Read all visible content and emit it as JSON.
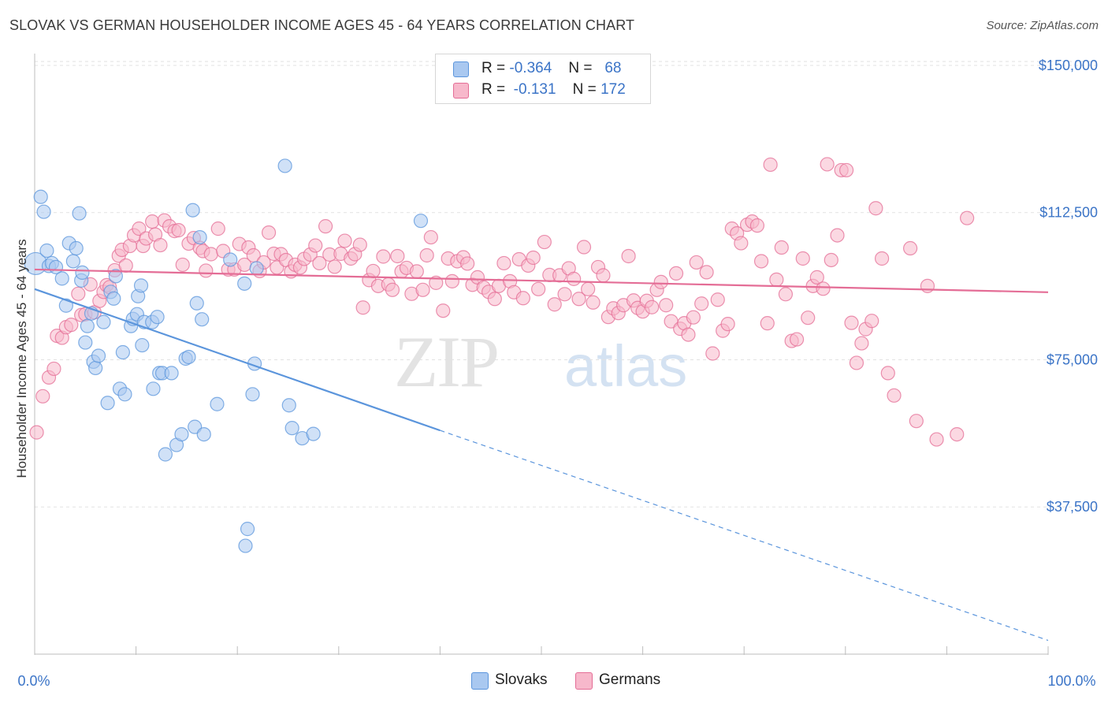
{
  "title": "SLOVAK VS GERMAN HOUSEHOLDER INCOME AGES 45 - 64 YEARS CORRELATION CHART",
  "source": "Source: ZipAtlas.com",
  "watermark": {
    "zip": "ZIP",
    "atlas": "atlas"
  },
  "legend": {
    "rows": [
      {
        "r_label": "R =",
        "r_value": "-0.364",
        "n_label": "N =",
        "n_value": "68",
        "color": "#a9c8f0"
      },
      {
        "r_label": "R =",
        "r_value": "-0.131",
        "n_label": "N =",
        "n_value": "172",
        "color": "#f7b8cb"
      }
    ]
  },
  "bottom_legend": [
    {
      "label": "Slovaks",
      "color": "#a9c8f0"
    },
    {
      "label": "Germans",
      "color": "#f7b8cb"
    }
  ],
  "chart_data": {
    "type": "scatter",
    "title": "SLOVAK VS GERMAN HOUSEHOLDER INCOME AGES 45 - 64 YEARS CORRELATION CHART",
    "xlabel": "",
    "ylabel": "Householder Income Ages 45 - 64 years",
    "x_tick_labels": [
      "0.0%",
      "100.0%"
    ],
    "y_tick_labels": [
      "$150,000",
      "$112,500",
      "$75,000",
      "$37,500"
    ],
    "y_ticks": [
      150000,
      112500,
      75000,
      37500
    ],
    "xlim": [
      0,
      100
    ],
    "ylim": [
      0,
      153000
    ],
    "grid": "horizontal dashed",
    "legend_position": "top-center",
    "series": [
      {
        "name": "Slovaks",
        "color": "#5b95dc",
        "fill": "#a9c8f0",
        "trend": {
          "x0": 0,
          "y0": 93000,
          "x1": 40,
          "y1": 57000,
          "dashed_to_x": 100,
          "dashed_to_y": 3500
        },
        "points": [
          [
            0.1,
            99500
          ],
          [
            0.6,
            116500
          ],
          [
            0.9,
            112700
          ],
          [
            1.2,
            102800
          ],
          [
            1.4,
            98900
          ],
          [
            1.7,
            99600
          ],
          [
            2.1,
            98600
          ],
          [
            2.7,
            95700
          ],
          [
            3.1,
            88800
          ],
          [
            3.4,
            104700
          ],
          [
            3.8,
            100100
          ],
          [
            4.1,
            103400
          ],
          [
            4.4,
            112300
          ],
          [
            4.6,
            95200
          ],
          [
            4.7,
            97200
          ],
          [
            5.0,
            79400
          ],
          [
            5.2,
            83600
          ],
          [
            5.6,
            86800
          ],
          [
            5.8,
            74500
          ],
          [
            6.0,
            72900
          ],
          [
            6.3,
            76000
          ],
          [
            6.8,
            84600
          ],
          [
            7.2,
            64000
          ],
          [
            7.5,
            92300
          ],
          [
            7.8,
            90600
          ],
          [
            8.0,
            96300
          ],
          [
            8.4,
            67600
          ],
          [
            8.7,
            76900
          ],
          [
            8.9,
            66200
          ],
          [
            9.5,
            83600
          ],
          [
            9.7,
            85400
          ],
          [
            10.1,
            86600
          ],
          [
            10.2,
            91200
          ],
          [
            10.5,
            93900
          ],
          [
            10.6,
            78700
          ],
          [
            10.8,
            84600
          ],
          [
            11.6,
            84600
          ],
          [
            11.7,
            67600
          ],
          [
            12.1,
            85900
          ],
          [
            12.3,
            71600
          ],
          [
            12.6,
            71600
          ],
          [
            12.9,
            50900
          ],
          [
            13.5,
            71600
          ],
          [
            14.0,
            53300
          ],
          [
            14.5,
            56000
          ],
          [
            14.9,
            75300
          ],
          [
            15.2,
            75700
          ],
          [
            15.6,
            113100
          ],
          [
            15.8,
            57900
          ],
          [
            16.0,
            89400
          ],
          [
            16.3,
            106200
          ],
          [
            16.5,
            85300
          ],
          [
            16.7,
            56000
          ],
          [
            18.0,
            63700
          ],
          [
            19.3,
            100500
          ],
          [
            20.7,
            94400
          ],
          [
            20.8,
            27600
          ],
          [
            21.0,
            31900
          ],
          [
            21.5,
            66200
          ],
          [
            21.7,
            74000
          ],
          [
            21.9,
            98300
          ],
          [
            24.7,
            124400
          ],
          [
            25.1,
            63400
          ],
          [
            25.4,
            57600
          ],
          [
            26.4,
            55000
          ],
          [
            27.5,
            56100
          ],
          [
            38.1,
            110400
          ]
        ]
      },
      {
        "name": "Germans",
        "color": "#e46d96",
        "fill": "#f7b8cb",
        "trend": {
          "x0": 0,
          "y0": 98000,
          "x1": 100,
          "y1": 92200
        },
        "points": [
          [
            0.2,
            56500
          ],
          [
            0.8,
            65700
          ],
          [
            1.4,
            70500
          ],
          [
            1.9,
            72700
          ],
          [
            2.2,
            81100
          ],
          [
            2.7,
            80600
          ],
          [
            3.1,
            83300
          ],
          [
            3.6,
            83900
          ],
          [
            4.3,
            91800
          ],
          [
            4.6,
            86400
          ],
          [
            5.0,
            86600
          ],
          [
            5.5,
            94200
          ],
          [
            5.9,
            87100
          ],
          [
            6.4,
            90000
          ],
          [
            6.8,
            92300
          ],
          [
            7.1,
            94000
          ],
          [
            7.4,
            93500
          ],
          [
            7.9,
            97800
          ],
          [
            8.3,
            101500
          ],
          [
            8.6,
            103000
          ],
          [
            9.0,
            99000
          ],
          [
            9.4,
            104000
          ],
          [
            9.8,
            106700
          ],
          [
            10.3,
            108400
          ],
          [
            10.7,
            104000
          ],
          [
            11.0,
            105900
          ],
          [
            11.6,
            110200
          ],
          [
            11.9,
            106900
          ],
          [
            12.4,
            104200
          ],
          [
            12.8,
            110500
          ],
          [
            13.3,
            109000
          ],
          [
            13.8,
            107800
          ],
          [
            14.2,
            108000
          ],
          [
            14.6,
            99200
          ],
          [
            15.2,
            104600
          ],
          [
            15.7,
            106000
          ],
          [
            16.3,
            103500
          ],
          [
            16.6,
            102700
          ],
          [
            16.9,
            97700
          ],
          [
            17.4,
            101900
          ],
          [
            18.1,
            108400
          ],
          [
            18.6,
            102700
          ],
          [
            19.1,
            98000
          ],
          [
            19.7,
            98000
          ],
          [
            20.2,
            104500
          ],
          [
            20.7,
            99200
          ],
          [
            21.1,
            103600
          ],
          [
            21.6,
            101600
          ],
          [
            22.2,
            97600
          ],
          [
            22.6,
            99800
          ],
          [
            23.1,
            107400
          ],
          [
            23.6,
            102000
          ],
          [
            23.9,
            98500
          ],
          [
            24.3,
            101900
          ],
          [
            24.8,
            100400
          ],
          [
            25.3,
            97500
          ],
          [
            25.7,
            99200
          ],
          [
            26.2,
            98500
          ],
          [
            26.6,
            100700
          ],
          [
            27.2,
            101800
          ],
          [
            27.7,
            104100
          ],
          [
            28.1,
            99600
          ],
          [
            28.7,
            109000
          ],
          [
            29.1,
            101800
          ],
          [
            29.6,
            98700
          ],
          [
            30.2,
            102000
          ],
          [
            30.6,
            105300
          ],
          [
            31.2,
            100800
          ],
          [
            31.6,
            101900
          ],
          [
            32.1,
            104300
          ],
          [
            32.4,
            88300
          ],
          [
            33.0,
            95300
          ],
          [
            33.4,
            97600
          ],
          [
            33.9,
            93800
          ],
          [
            34.4,
            101300
          ],
          [
            34.9,
            94200
          ],
          [
            35.3,
            92800
          ],
          [
            35.8,
            101400
          ],
          [
            36.2,
            97500
          ],
          [
            36.7,
            98400
          ],
          [
            37.2,
            91800
          ],
          [
            37.7,
            97500
          ],
          [
            38.3,
            92800
          ],
          [
            38.7,
            101600
          ],
          [
            39.1,
            106200
          ],
          [
            39.6,
            94600
          ],
          [
            40.3,
            87500
          ],
          [
            40.8,
            100800
          ],
          [
            41.2,
            95000
          ],
          [
            41.7,
            100100
          ],
          [
            42.3,
            101100
          ],
          [
            42.7,
            99500
          ],
          [
            43.2,
            94100
          ],
          [
            43.7,
            96000
          ],
          [
            44.3,
            93400
          ],
          [
            44.8,
            92300
          ],
          [
            45.4,
            90500
          ],
          [
            45.8,
            93800
          ],
          [
            46.3,
            99600
          ],
          [
            46.9,
            95000
          ],
          [
            47.3,
            92200
          ],
          [
            47.8,
            100600
          ],
          [
            48.2,
            90700
          ],
          [
            48.7,
            99000
          ],
          [
            49.2,
            101000
          ],
          [
            49.7,
            93000
          ],
          [
            50.3,
            105000
          ],
          [
            50.8,
            96600
          ],
          [
            51.3,
            89100
          ],
          [
            51.8,
            96500
          ],
          [
            52.3,
            91700
          ],
          [
            52.7,
            98300
          ],
          [
            53.2,
            95600
          ],
          [
            53.7,
            90500
          ],
          [
            54.2,
            103700
          ],
          [
            54.6,
            93000
          ],
          [
            55.1,
            89600
          ],
          [
            55.6,
            98600
          ],
          [
            56.1,
            96500
          ],
          [
            56.6,
            85900
          ],
          [
            57.1,
            88100
          ],
          [
            57.6,
            86900
          ],
          [
            58.1,
            88900
          ],
          [
            58.6,
            101400
          ],
          [
            59.1,
            90100
          ],
          [
            59.5,
            88200
          ],
          [
            60.0,
            87300
          ],
          [
            60.4,
            90000
          ],
          [
            60.9,
            88400
          ],
          [
            61.4,
            92800
          ],
          [
            61.8,
            94800
          ],
          [
            62.3,
            88900
          ],
          [
            62.8,
            84800
          ],
          [
            63.3,
            97000
          ],
          [
            63.7,
            82900
          ],
          [
            64.1,
            84300
          ],
          [
            64.5,
            81400
          ],
          [
            65.0,
            85800
          ],
          [
            65.3,
            99800
          ],
          [
            65.8,
            89300
          ],
          [
            66.3,
            97300
          ],
          [
            66.9,
            76600
          ],
          [
            67.4,
            90300
          ],
          [
            67.9,
            82400
          ],
          [
            68.4,
            84100
          ],
          [
            68.8,
            108400
          ],
          [
            69.3,
            107200
          ],
          [
            69.7,
            104700
          ],
          [
            70.3,
            109400
          ],
          [
            70.8,
            110200
          ],
          [
            71.3,
            109200
          ],
          [
            71.7,
            100100
          ],
          [
            72.3,
            84300
          ],
          [
            72.6,
            124700
          ],
          [
            73.2,
            95400
          ],
          [
            73.7,
            103600
          ],
          [
            74.1,
            91700
          ],
          [
            74.7,
            79800
          ],
          [
            75.2,
            80200
          ],
          [
            75.8,
            100800
          ],
          [
            76.3,
            85700
          ],
          [
            76.8,
            93800
          ],
          [
            77.2,
            96000
          ],
          [
            77.8,
            93100
          ],
          [
            78.2,
            124800
          ],
          [
            78.6,
            100400
          ],
          [
            79.2,
            106700
          ],
          [
            79.6,
            123300
          ],
          [
            80.1,
            123300
          ],
          [
            80.6,
            84400
          ],
          [
            81.1,
            74200
          ],
          [
            81.6,
            79200
          ],
          [
            82.0,
            82800
          ],
          [
            82.6,
            84900
          ],
          [
            83.0,
            113600
          ],
          [
            83.6,
            100800
          ],
          [
            84.2,
            71600
          ],
          [
            84.8,
            65900
          ],
          [
            86.4,
            103400
          ],
          [
            87.0,
            59400
          ],
          [
            88.1,
            93800
          ],
          [
            89.0,
            54700
          ],
          [
            91.0,
            56000
          ],
          [
            92.0,
            111100
          ]
        ]
      }
    ]
  }
}
